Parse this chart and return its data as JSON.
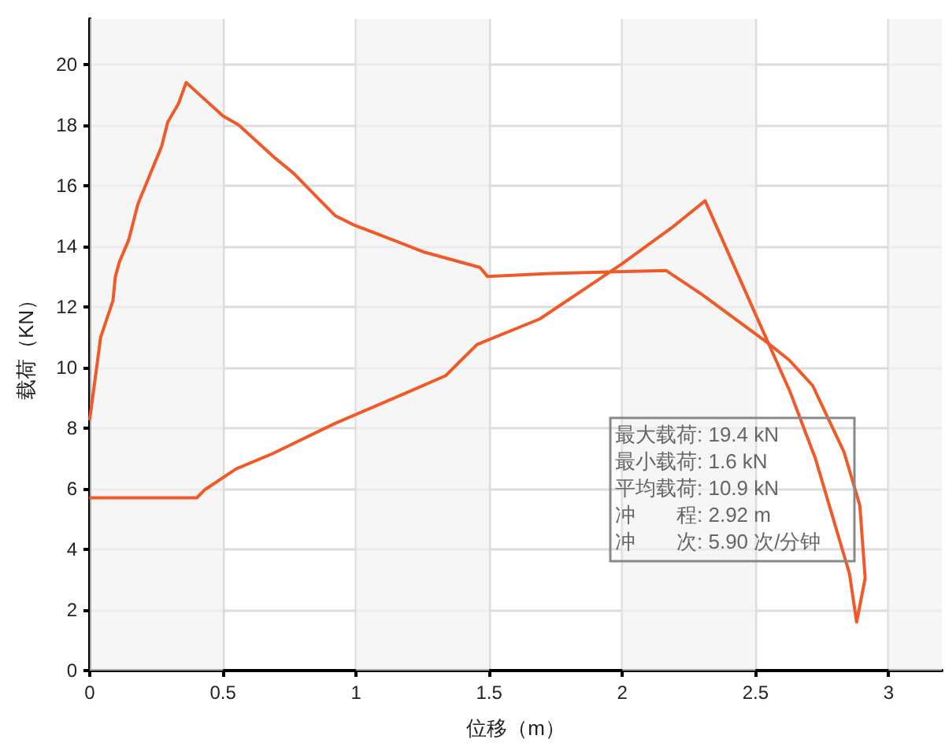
{
  "chart_data": {
    "type": "line",
    "xlabel": "位移（m）",
    "ylabel": "载荷（KN）",
    "series": [
      {
        "color": "#f05a28",
        "x": [
          0,
          0.041,
          0.087,
          0.096,
          0.112,
          0.146,
          0.181,
          0.27,
          0.293,
          0.333,
          0.362,
          0.5,
          0.559,
          0.697,
          0.766,
          0.855,
          0.923,
          0.992,
          1.081,
          1.258,
          1.465,
          1.494,
          1.73,
          2.164,
          2.3,
          2.54,
          2.626,
          2.715,
          2.833,
          2.892,
          2.912,
          2.88,
          2.853,
          2.725,
          2.63,
          2.498,
          2.311,
          2.184,
          1.996,
          1.69,
          1.455,
          1.396,
          1.337,
          1.18,
          0.92,
          0.687,
          0.549,
          0.431,
          0.402,
          0.003
        ],
        "values": [
          8.3,
          11.0,
          12.2,
          13.0,
          13.5,
          14.2,
          15.4,
          17.3,
          18.1,
          18.7,
          19.4,
          18.3,
          18.0,
          16.9,
          16.4,
          15.6,
          15.0,
          14.7,
          14.4,
          13.8,
          13.3,
          13.0,
          13.1,
          13.2,
          12.4,
          10.85,
          10.25,
          9.4,
          7.2,
          5.45,
          3.05,
          1.6,
          3.2,
          7.0,
          9.2,
          11.8,
          15.5,
          14.6,
          13.4,
          11.6,
          10.76,
          10.25,
          9.73,
          9.13,
          8.15,
          7.16,
          6.65,
          5.96,
          5.7,
          5.7
        ]
      }
    ],
    "xlim": [
      0,
      3.2
    ],
    "xticks": [
      0,
      0.5,
      1,
      1.5,
      2,
      2.5,
      3
    ],
    "ylim": [
      0,
      21.5
    ],
    "yticks": [
      0,
      2,
      4,
      6,
      8,
      10,
      12,
      14,
      16,
      18,
      20
    ],
    "grid": true,
    "marker": "none",
    "line_style": "solid",
    "bands": [
      {
        "axis": "x",
        "from": 0,
        "to": 0.5,
        "color": "#f2f2f2"
      },
      {
        "axis": "x",
        "from": 1,
        "to": 1.5,
        "color": "#f2f2f2"
      },
      {
        "axis": "x",
        "from": 2,
        "to": 2.5,
        "color": "#f2f2f2"
      },
      {
        "axis": "x",
        "from": 3,
        "to": 3.2,
        "color": "#f2f2f2"
      }
    ],
    "annotations": [
      "最大载荷: 19.4 kN",
      "最小载荷: 1.6 kN",
      "平均载荷: 10.9 kN",
      "冲　　程: 2.92 m",
      "冲　　次: 5.90 次/分钟"
    ]
  }
}
